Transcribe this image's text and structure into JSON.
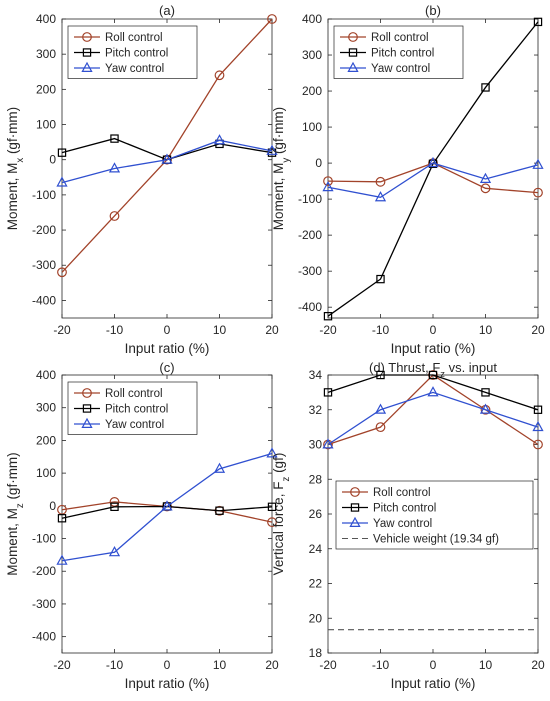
{
  "colors": {
    "roll": "#a2432a",
    "pitch": "#000000",
    "yaw": "#3050d0",
    "weight": "#555555",
    "axis": "#262626"
  },
  "chart_data": [
    {
      "type": "line",
      "title": "(a)",
      "xlabel": "Input ratio (%)",
      "ylabel": "Moment, M",
      "ylabel_sub": "x",
      "ylabel_tail": " (gf·mm)",
      "x": [
        -20,
        -10,
        0,
        10,
        20
      ],
      "xlim": [
        -20,
        20
      ],
      "ylim": [
        -450,
        400
      ],
      "xticks": [
        "-20",
        "-10",
        "0",
        "10",
        "20"
      ],
      "yticks": [
        "-400",
        "-300",
        "-200",
        "-100",
        "0",
        "100",
        "200",
        "300",
        "400"
      ],
      "legend": "top-left",
      "series": [
        {
          "name": "Roll control",
          "marker": "circle",
          "values": [
            -320,
            -160,
            0,
            240,
            400
          ]
        },
        {
          "name": "Pitch control",
          "marker": "square",
          "values": [
            20,
            60,
            0,
            45,
            20
          ]
        },
        {
          "name": "Yaw control",
          "marker": "triangle",
          "values": [
            -65,
            -25,
            0,
            55,
            25
          ]
        }
      ]
    },
    {
      "type": "line",
      "title": "(b)",
      "xlabel": "Input ratio (%)",
      "ylabel": "Moment, M",
      "ylabel_sub": "y",
      "ylabel_tail": " (gf·mm)",
      "x": [
        -20,
        -10,
        0,
        10,
        20
      ],
      "xlim": [
        -20,
        20
      ],
      "ylim": [
        -430,
        400
      ],
      "xticks": [
        "-20",
        "-10",
        "0",
        "10",
        "20"
      ],
      "yticks": [
        "-400",
        "-300",
        "-200",
        "-100",
        "0",
        "100",
        "200",
        "300",
        "400"
      ],
      "legend": "top-left",
      "series": [
        {
          "name": "Roll control",
          "marker": "circle",
          "values": [
            -50,
            -52,
            0,
            -70,
            -82
          ]
        },
        {
          "name": "Pitch control",
          "marker": "square",
          "values": [
            -425,
            -322,
            -2,
            210,
            392
          ]
        },
        {
          "name": "Yaw control",
          "marker": "triangle",
          "values": [
            -67,
            -95,
            0,
            -44,
            -5
          ]
        }
      ]
    },
    {
      "type": "line",
      "title": "(c)",
      "xlabel": "Input ratio (%)",
      "ylabel": "Moment, M",
      "ylabel_sub": "z",
      "ylabel_tail": " (gf·mm)",
      "x": [
        -20,
        -10,
        0,
        10,
        20
      ],
      "xlim": [
        -20,
        20
      ],
      "ylim": [
        -450,
        400
      ],
      "xticks": [
        "-20",
        "-10",
        "0",
        "10",
        "20"
      ],
      "yticks": [
        "-400",
        "-300",
        "-200",
        "-100",
        "0",
        "100",
        "200",
        "300",
        "400"
      ],
      "legend": "top-left",
      "series": [
        {
          "name": "Roll control",
          "marker": "circle",
          "values": [
            -12,
            12,
            -2,
            -15,
            -50
          ]
        },
        {
          "name": "Pitch control",
          "marker": "square",
          "values": [
            -38,
            -3,
            -2,
            -15,
            -3
          ]
        },
        {
          "name": "Yaw control",
          "marker": "triangle",
          "values": [
            -168,
            -142,
            -2,
            113,
            160
          ]
        }
      ]
    },
    {
      "type": "line",
      "title": "(d) Thrust, F",
      "title_sub": "z",
      "title_tail": " vs. input",
      "xlabel": "Input ratio (%)",
      "ylabel": "Vertical force, F",
      "ylabel_sub": "z",
      "ylabel_tail": " (gf)",
      "x": [
        -20,
        -10,
        0,
        10,
        20
      ],
      "xlim": [
        -20,
        20
      ],
      "ylim": [
        18,
        34
      ],
      "xticks": [
        "-20",
        "-10",
        "0",
        "10",
        "20"
      ],
      "yticks": [
        "18",
        "20",
        "22",
        "24",
        "26",
        "28",
        "30",
        "32",
        "34"
      ],
      "legend": "lower-left",
      "series": [
        {
          "name": "Roll control",
          "marker": "circle",
          "values": [
            30,
            31,
            34,
            32,
            30
          ]
        },
        {
          "name": "Pitch control",
          "marker": "square",
          "values": [
            33,
            34,
            34,
            33,
            32
          ]
        },
        {
          "name": "Yaw control",
          "marker": "triangle",
          "values": [
            30,
            32,
            33,
            32,
            31
          ]
        },
        {
          "name": "Vehicle weight (19.34 gf)",
          "marker": "none",
          "dashed": true,
          "hline": 19.34
        }
      ]
    }
  ]
}
